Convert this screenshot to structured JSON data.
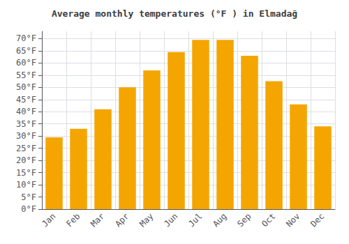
{
  "chart_data": {
    "type": "bar",
    "title": "Average monthly temperatures (°F ) in Elmadağ",
    "categories": [
      "Jan",
      "Feb",
      "Mar",
      "Apr",
      "May",
      "Jun",
      "Jul",
      "Aug",
      "Sep",
      "Oct",
      "Nov",
      "Dec"
    ],
    "values": [
      29.5,
      33.0,
      41.0,
      50.0,
      57.0,
      64.5,
      69.5,
      69.5,
      63.0,
      52.5,
      43.0,
      34.0
    ],
    "color": "#F5A500",
    "ylim": [
      0,
      73
    ],
    "yticks": [
      {
        "value": 0,
        "label": "0°F"
      },
      {
        "value": 5,
        "label": "5°F"
      },
      {
        "value": 10,
        "label": "10°F"
      },
      {
        "value": 15,
        "label": "15°F"
      },
      {
        "value": 20,
        "label": "20°F"
      },
      {
        "value": 25,
        "label": "25°F"
      },
      {
        "value": 30,
        "label": "30°F"
      },
      {
        "value": 35,
        "label": "35°F"
      },
      {
        "value": 40,
        "label": "40°F"
      },
      {
        "value": 45,
        "label": "45°F"
      },
      {
        "value": 50,
        "label": "50°F"
      },
      {
        "value": 55,
        "label": "55°F"
      },
      {
        "value": 60,
        "label": "60°F"
      },
      {
        "value": 65,
        "label": "65°F"
      },
      {
        "value": 70,
        "label": "70°F"
      }
    ],
    "grid": true
  }
}
